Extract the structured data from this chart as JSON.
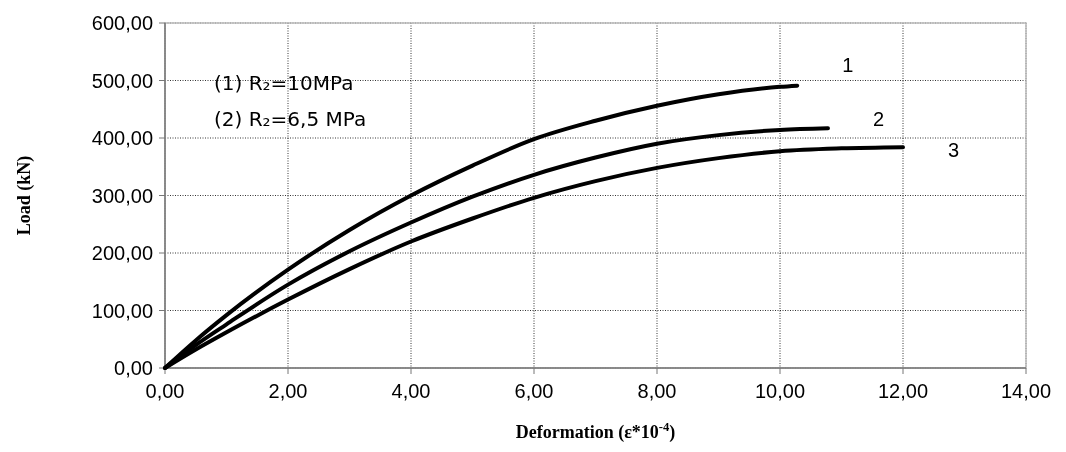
{
  "chart_data": {
    "type": "line",
    "xlabel": "Deformation (ε*10$^{-4}$)",
    "ylabel": "Load (kN)",
    "annotations": [
      "(1) R₂=10MPa",
      "(2) R₂=6,5 MPa"
    ],
    "series": [
      {
        "name": "1",
        "color": "#000000",
        "x": [
          0,
          0.5,
          1,
          2,
          3,
          4,
          5,
          6,
          7,
          8,
          9,
          10,
          10.28
        ],
        "values": [
          0,
          48,
          92,
          171,
          240,
          300,
          352,
          398,
          430,
          456,
          476,
          489,
          491
        ]
      },
      {
        "name": "2",
        "color": "#000000",
        "x": [
          0,
          0.5,
          1,
          2,
          3,
          4,
          5,
          6,
          7,
          8,
          9,
          10,
          10.78
        ],
        "values": [
          0,
          40,
          76,
          145,
          203,
          253,
          298,
          336,
          366,
          390,
          405,
          414,
          417
        ]
      },
      {
        "name": "3",
        "color": "#000000",
        "x": [
          0,
          0.5,
          1,
          2,
          3,
          4,
          5,
          6,
          7,
          8,
          9,
          10,
          11,
          12
        ],
        "values": [
          0,
          32,
          62,
          119,
          172,
          220,
          260,
          296,
          325,
          348,
          365,
          377,
          382,
          384
        ]
      }
    ],
    "xlim": [
      0,
      14
    ],
    "ylim": [
      0,
      600
    ],
    "xticks": [
      {
        "value": 0,
        "label": "0,00"
      },
      {
        "value": 2,
        "label": "2,00"
      },
      {
        "value": 4,
        "label": "4,00"
      },
      {
        "value": 6,
        "label": "6,00"
      },
      {
        "value": 8,
        "label": "8,00"
      },
      {
        "value": 10,
        "label": "10,00"
      },
      {
        "value": 12,
        "label": "12,00"
      },
      {
        "value": 14,
        "label": "14,00"
      }
    ],
    "yticks": [
      {
        "value": 0,
        "label": "0,00"
      },
      {
        "value": 100,
        "label": "100,00"
      },
      {
        "value": 200,
        "label": "200,00"
      },
      {
        "value": 300,
        "label": "300,00"
      },
      {
        "value": 400,
        "label": "400,00"
      },
      {
        "value": 500,
        "label": "500,00"
      },
      {
        "value": 600,
        "label": "600,00"
      }
    ],
    "grid": true,
    "legend": false,
    "marker": "none",
    "line_style": "solid"
  }
}
